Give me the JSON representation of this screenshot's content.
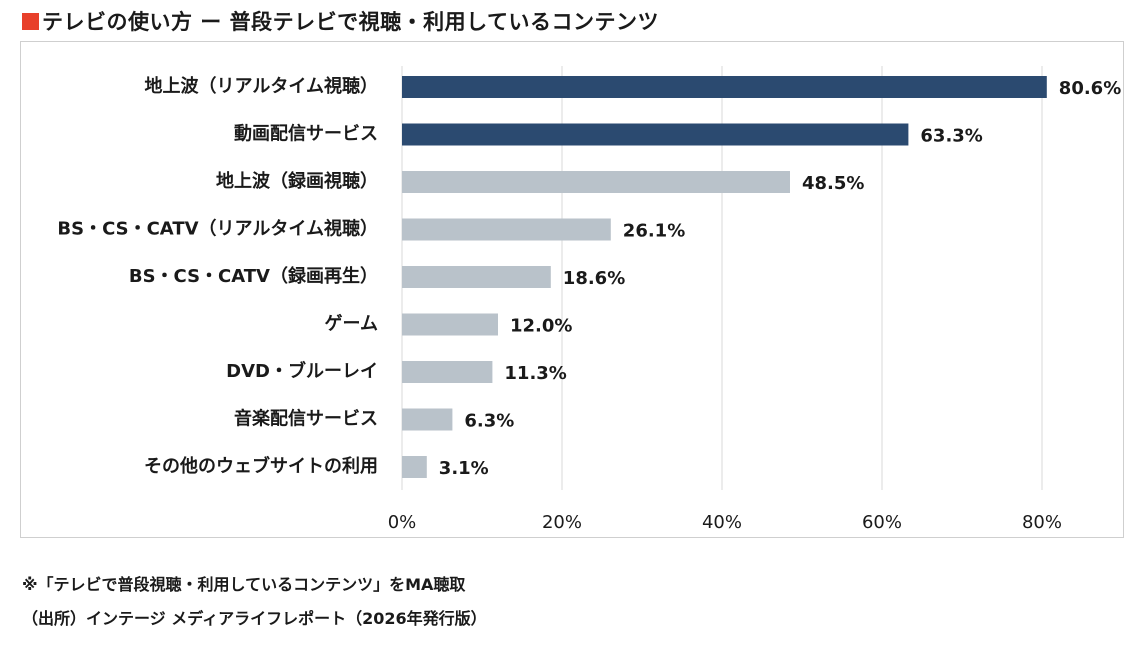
{
  "title": {
    "text": "テレビの使い方 ー 普段テレビで視聴・利用しているコンテンツ",
    "marker_color": "#e8402a"
  },
  "notes": {
    "note": "※「テレビで普段視聴・利用しているコンテンツ」をMA聴取",
    "source": "（出所）インテージ メディアライフレポート（2026年発行版）"
  },
  "chart_data": {
    "type": "bar",
    "orientation": "horizontal",
    "title": "テレビの使い方 ー 普段テレビで視聴・利用しているコンテンツ",
    "xlabel": "",
    "ylabel": "",
    "categories": [
      "地上波（リアルタイム視聴）",
      "動画配信サービス",
      "地上波（録画視聴）",
      "BS・CS・CATV（リアルタイム視聴）",
      "BS・CS・CATV（録画再生）",
      "ゲーム",
      "DVD・ブルーレイ",
      "音楽配信サービス",
      "その他のウェブサイトの利用"
    ],
    "values": [
      80.6,
      63.3,
      48.5,
      26.1,
      18.6,
      12.0,
      11.3,
      6.3,
      3.1
    ],
    "value_labels": [
      "80.6%",
      "63.3%",
      "48.5%",
      "26.1%",
      "18.6%",
      "12.0%",
      "11.3%",
      "6.3%",
      "3.1%"
    ],
    "highlight": [
      true,
      true,
      false,
      false,
      false,
      false,
      false,
      false,
      false
    ],
    "colors": {
      "highlight": "#2b4a70",
      "normal": "#b9c2ca",
      "grid": "#d9d9d9"
    },
    "xlim": [
      0,
      80
    ],
    "xticks": [
      0,
      20,
      40,
      60,
      80
    ],
    "xtick_labels": [
      "0%",
      "20%",
      "40%",
      "60%",
      "80%"
    ],
    "grid": "vertical",
    "legend": "none"
  }
}
